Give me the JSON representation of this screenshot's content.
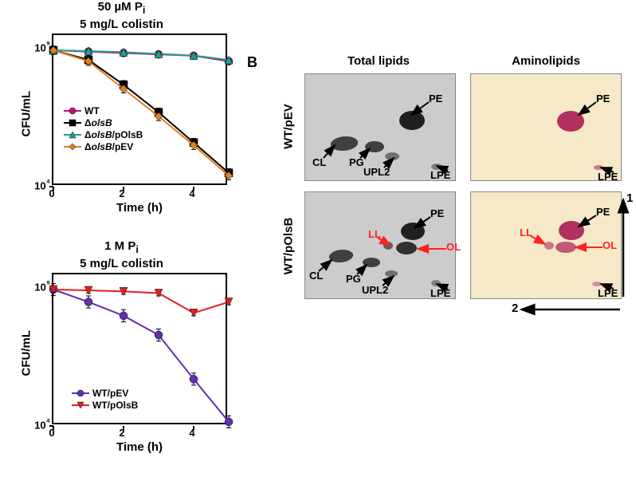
{
  "chartTop": {
    "titleL1": "50 µM P",
    "titleSub": "i",
    "titleL2": "5 mg/L colistin",
    "title_fontsize": 15,
    "ylabel": "CFU/mL",
    "xlabel": "Time (h)",
    "label_fontsize": 15,
    "tick_fontsize": 13,
    "xlim": [
      0,
      5
    ],
    "ylim": [
      4,
      9.5
    ],
    "yticks": [
      {
        "v": 4,
        "label": "10⁴"
      },
      {
        "v": 9,
        "label": "10⁹"
      }
    ],
    "xticks": [
      {
        "v": 0,
        "label": "0"
      },
      {
        "v": 2,
        "label": "2"
      },
      {
        "v": 4,
        "label": "4"
      }
    ],
    "series": [
      {
        "name": "WT",
        "color": "#c01080",
        "marker": "circle",
        "pts": [
          [
            0,
            8.95
          ],
          [
            1,
            8.9
          ],
          [
            2,
            8.85
          ],
          [
            3,
            8.8
          ],
          [
            4,
            8.75
          ],
          [
            5,
            8.55
          ]
        ],
        "err": 0.05
      },
      {
        "name": "ΔolsB",
        "color": "#000000",
        "marker": "square",
        "pts": [
          [
            0,
            8.95
          ],
          [
            1,
            8.6
          ],
          [
            2,
            7.7
          ],
          [
            3,
            6.7
          ],
          [
            4,
            5.6
          ],
          [
            5,
            4.5
          ]
        ],
        "err": 0.15
      },
      {
        "name": "ΔolsB/pOlsB",
        "color": "#20a090",
        "marker": "triangle",
        "pts": [
          [
            0,
            8.95
          ],
          [
            1,
            8.92
          ],
          [
            2,
            8.88
          ],
          [
            3,
            8.82
          ],
          [
            4,
            8.76
          ],
          [
            5,
            8.6
          ]
        ],
        "err": 0.05
      },
      {
        "name": "ΔolsB/pEV",
        "color": "#e08020",
        "marker": "diamond",
        "pts": [
          [
            0,
            8.95
          ],
          [
            1,
            8.55
          ],
          [
            2,
            7.55
          ],
          [
            3,
            6.55
          ],
          [
            4,
            5.5
          ],
          [
            5,
            4.4
          ]
        ],
        "err": 0.15
      }
    ],
    "legend_fontsize": 12,
    "plot_bg": "#ffffff",
    "line_width": 2,
    "marker_size": 5
  },
  "chartBottom": {
    "titleL1": "1 M P",
    "titleSub": "i",
    "titleL2": "5 mg/L colistin",
    "title_fontsize": 15,
    "ylabel": "CFU/mL",
    "xlabel": "Time (h)",
    "label_fontsize": 15,
    "tick_fontsize": 13,
    "xlim": [
      0,
      5
    ],
    "ylim": [
      4,
      9.5
    ],
    "yticks": [
      {
        "v": 4,
        "label": "10⁴"
      },
      {
        "v": 9,
        "label": "10⁹"
      }
    ],
    "xticks": [
      {
        "v": 0,
        "label": "0"
      },
      {
        "v": 2,
        "label": "2"
      },
      {
        "v": 4,
        "label": "4"
      }
    ],
    "series": [
      {
        "name": "WT/pEV",
        "color": "#6030b0",
        "marker": "circle",
        "pts": [
          [
            0,
            8.95
          ],
          [
            1,
            8.5
          ],
          [
            2,
            8.0
          ],
          [
            3,
            7.3
          ],
          [
            4,
            5.7
          ],
          [
            5,
            4.15
          ]
        ],
        "err": 0.22
      },
      {
        "name": "WT/pOlsB",
        "color": "#e02020",
        "marker": "triangle-down",
        "pts": [
          [
            0,
            8.95
          ],
          [
            1,
            8.92
          ],
          [
            2,
            8.88
          ],
          [
            3,
            8.82
          ],
          [
            4,
            8.1
          ],
          [
            5,
            8.5
          ]
        ],
        "err": 0.1
      }
    ],
    "legend_fontsize": 12,
    "plot_bg": "#ffffff",
    "line_width": 2,
    "marker_size": 5
  },
  "panelB": {
    "label": "B",
    "label_fontsize": 18,
    "colTitles": {
      "left": "Total lipids",
      "right": "Aminolipids",
      "fontsize": 15
    },
    "rowLabels": {
      "top": "WT/pEV",
      "bottom": "WT/pOlsB",
      "fontsize": 15
    },
    "tlc_gray_bg": "#c8c8c8",
    "tlc_nin_bg": "#f5e9c8",
    "spot_gray": "#303030",
    "spot_nin": "#b03060",
    "annot_black": "#000000",
    "annot_red": "#ff2020",
    "axis_arrow_labels": {
      "dim1": "1",
      "dim2": "2",
      "fontsize": 15
    },
    "spots": {
      "CL": "CL",
      "PG": "PG",
      "UPL2": "UPL2",
      "PE": "PE",
      "LPE": "LPE",
      "LL": "LL",
      "OL": "OL"
    }
  }
}
